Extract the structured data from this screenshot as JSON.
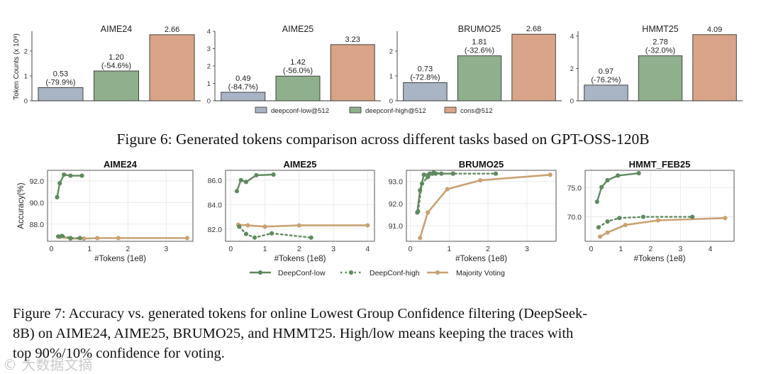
{
  "figure6": {
    "caption": "Figure 6: Generated tokens comparison across different tasks based on GPT-OSS-120B",
    "ylabel": "Token Counts (x 10⁸)",
    "legend": [
      "deepconf-low@512",
      "deepconf-high@512",
      "cons@512"
    ],
    "colors": [
      "#a9b4c4",
      "#8fb08c",
      "#d9a487"
    ]
  },
  "figure7": {
    "caption_lines": [
      "Figure 7: Accuracy vs. generated tokens for online Lowest Group Confidence filtering (DeepSeek-",
      "8B) on AIME24, AIME25, BRUMO25, and HMMT25.  High/low means keeping the traces with",
      "top 90%/10% confidence for voting."
    ],
    "ylabel": "Accuracy(%)",
    "xlabel": "#Tokens (1e8)",
    "legend": [
      "DeepConf-low",
      "DeepConf-high",
      "Majority Voting"
    ],
    "colors": {
      "low": "#5f8a5f",
      "high": "#5f8a5f",
      "mv": "#c9a272"
    }
  },
  "watermark": "© 大数据文摘",
  "chart_data": [
    {
      "type": "bar",
      "title": "AIME24",
      "categories": [
        "deepconf-low@512",
        "deepconf-high@512",
        "cons@512"
      ],
      "values": [
        0.53,
        1.2,
        2.66
      ],
      "labels": [
        "0.53\n(-79.9%)",
        "1.20\n(-54.6%)",
        "2.66"
      ],
      "ylim": [
        0,
        2.8
      ],
      "yticks": [
        0,
        1,
        2
      ]
    },
    {
      "type": "bar",
      "title": "AIME25",
      "categories": [
        "deepconf-low@512",
        "deepconf-high@512",
        "cons@512"
      ],
      "values": [
        0.49,
        1.42,
        3.23
      ],
      "labels": [
        "0.49\n(-84.7%)",
        "1.42\n(-56.0%)",
        "3.23"
      ],
      "ylim": [
        0,
        4
      ],
      "yticks": [
        0,
        1,
        2,
        3,
        4
      ]
    },
    {
      "type": "bar",
      "title": "BRUMO25",
      "categories": [
        "deepconf-low@512",
        "deepconf-high@512",
        "cons@512"
      ],
      "values": [
        0.73,
        1.81,
        2.68
      ],
      "labels": [
        "0.73\n(-72.8%)",
        "1.81\n(-32.6%)",
        "2.68"
      ],
      "ylim": [
        0,
        2.8
      ],
      "yticks": [
        0,
        1,
        2
      ]
    },
    {
      "type": "bar",
      "title": "HMMT25",
      "categories": [
        "deepconf-low@512",
        "deepconf-high@512",
        "cons@512"
      ],
      "values": [
        0.97,
        2.78,
        4.09
      ],
      "labels": [
        "0.97\n(-76.2%)",
        "2.78\n(-32.0%)",
        "4.09"
      ],
      "ylim": [
        0,
        4.3
      ],
      "yticks": [
        0,
        2,
        4
      ]
    },
    {
      "type": "line",
      "title": "AIME24",
      "xlim": [
        -0.1,
        3.7
      ],
      "ylim": [
        86.4,
        93.0
      ],
      "xticks": [
        0,
        1,
        2,
        3
      ],
      "yticks": [
        88.0,
        90.0,
        92.0
      ],
      "series": [
        {
          "name": "DeepConf-low",
          "x": [
            0.15,
            0.22,
            0.33,
            0.5,
            0.8
          ],
          "y": [
            90.5,
            91.8,
            92.6,
            92.5,
            92.5
          ]
        },
        {
          "name": "DeepConf-high",
          "x": [
            0.18,
            0.28,
            0.5,
            0.75
          ],
          "y": [
            86.85,
            86.9,
            86.7,
            86.7
          ]
        },
        {
          "name": "Majority Voting",
          "x": [
            0.22,
            0.5,
            0.85,
            1.2,
            1.75,
            3.55
          ],
          "y": [
            86.8,
            86.65,
            86.65,
            86.7,
            86.7,
            86.7
          ]
        }
      ]
    },
    {
      "type": "line",
      "title": "AIME25",
      "xlim": [
        -0.15,
        4.2
      ],
      "ylim": [
        81.0,
        86.8
      ],
      "xticks": [
        0,
        1,
        2,
        3,
        4
      ],
      "yticks": [
        82.0,
        84.0,
        86.0
      ],
      "series": [
        {
          "name": "DeepConf-low",
          "x": [
            0.18,
            0.3,
            0.45,
            0.75,
            1.25
          ],
          "y": [
            85.1,
            86.0,
            85.85,
            86.4,
            86.45
          ]
        },
        {
          "name": "DeepConf-high",
          "x": [
            0.25,
            0.45,
            0.7,
            1.2,
            2.35
          ],
          "y": [
            82.2,
            81.6,
            81.3,
            81.65,
            81.3
          ]
        },
        {
          "name": "Majority Voting",
          "x": [
            0.22,
            0.5,
            1.0,
            2.0,
            4.0
          ],
          "y": [
            82.35,
            82.3,
            82.2,
            82.3,
            82.3
          ]
        }
      ]
    },
    {
      "type": "line",
      "title": "BRUMO25",
      "xlim": [
        -0.1,
        3.75
      ],
      "ylim": [
        90.3,
        93.5
      ],
      "xticks": [
        0,
        1,
        2,
        3
      ],
      "yticks": [
        91.0,
        92.0,
        93.0
      ],
      "series": [
        {
          "name": "DeepConf-low",
          "x": [
            0.18,
            0.25,
            0.35,
            0.5,
            0.6,
            0.8,
            1.1
          ],
          "y": [
            91.6,
            92.6,
            93.3,
            93.35,
            93.4,
            93.35,
            93.35
          ]
        },
        {
          "name": "DeepConf-high",
          "x": [
            0.2,
            0.3,
            0.45,
            0.65,
            1.1,
            2.2
          ],
          "y": [
            91.65,
            92.9,
            93.2,
            93.35,
            93.35,
            93.35
          ]
        },
        {
          "name": "Majority Voting",
          "x": [
            0.25,
            0.45,
            0.95,
            1.8,
            3.6
          ],
          "y": [
            90.45,
            91.6,
            92.65,
            93.05,
            93.3
          ]
        }
      ]
    },
    {
      "type": "line",
      "title": "HMMT_FEB25",
      "xlim": [
        -0.2,
        4.8
      ],
      "ylim": [
        65.8,
        78.0
      ],
      "xticks": [
        0,
        1,
        2,
        3,
        4
      ],
      "yticks": [
        70.0,
        75.0
      ],
      "series": [
        {
          "name": "DeepConf-low",
          "x": [
            0.2,
            0.35,
            0.55,
            0.9,
            1.6
          ],
          "y": [
            72.6,
            75.1,
            76.3,
            77.1,
            77.5
          ]
        },
        {
          "name": "DeepConf-high",
          "x": [
            0.25,
            0.55,
            0.95,
            1.75,
            3.4
          ],
          "y": [
            68.2,
            69.2,
            69.8,
            70.0,
            70.0
          ]
        },
        {
          "name": "Majority Voting",
          "x": [
            0.3,
            0.55,
            1.15,
            2.25,
            4.5
          ],
          "y": [
            66.6,
            67.3,
            68.6,
            69.4,
            69.8
          ]
        }
      ]
    }
  ]
}
